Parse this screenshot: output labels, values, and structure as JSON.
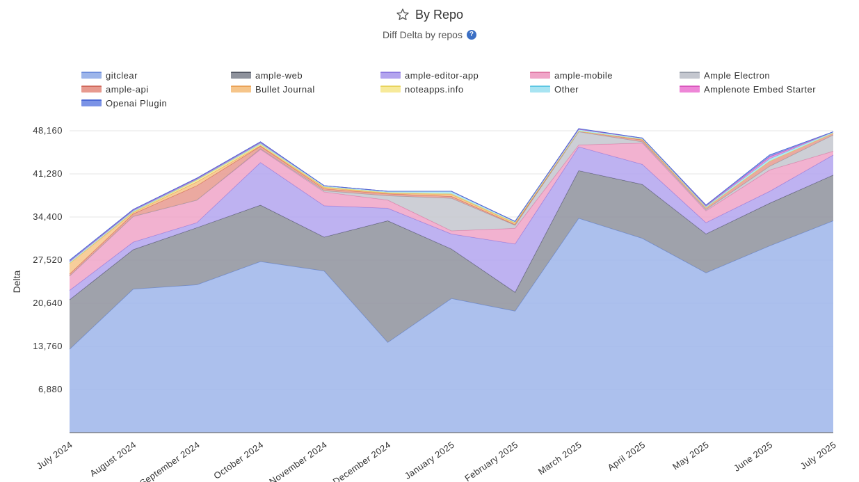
{
  "header": {
    "title": "By Repo",
    "subtitle": "Diff Delta by repos",
    "star_icon": "star-icon",
    "help_icon": "question-circle-icon",
    "help_glyph": "?"
  },
  "chart_data": {
    "type": "area",
    "stacked": true,
    "title": "By Repo",
    "subtitle": "Diff Delta by repos",
    "ylabel": "Delta",
    "xlabel": "",
    "ylim": [
      0,
      48160
    ],
    "yticks": [
      "6,880",
      "13,760",
      "20,640",
      "27,520",
      "34,400",
      "41,280",
      "48,160"
    ],
    "ytick_values": [
      6880,
      13760,
      20640,
      27520,
      34400,
      41280,
      48160
    ],
    "grid": true,
    "legend_position": "top",
    "categories": [
      "July 2024",
      "August 2024",
      "September 2024",
      "October 2024",
      "November 2024",
      "December 2024",
      "January 2025",
      "February 2025",
      "March 2025",
      "April 2025",
      "May 2025",
      "June 2025",
      "July 2025"
    ],
    "series": [
      {
        "name": "gitclear",
        "color": "#9db5ea",
        "line": "#6f8fdc",
        "values": [
          13300,
          22900,
          23600,
          27300,
          25800,
          14400,
          21400,
          19400,
          34200,
          31000,
          25500,
          29800,
          33800
        ]
      },
      {
        "name": "ample-web",
        "color": "#8e929c",
        "line": "#555a66",
        "values": [
          7900,
          6300,
          9100,
          9000,
          5400,
          19400,
          7900,
          3000,
          7600,
          8600,
          6200,
          6800,
          7300
        ]
      },
      {
        "name": "ample-editor-app",
        "color": "#b3a4ee",
        "line": "#8e7be0",
        "values": [
          1500,
          1200,
          800,
          6800,
          5000,
          2000,
          2400,
          7700,
          3800,
          3200,
          1800,
          1900,
          3200
        ]
      },
      {
        "name": "ample-mobile",
        "color": "#f0a5c8",
        "line": "#e07aa6",
        "values": [
          2300,
          4100,
          3600,
          2100,
          2200,
          1300,
          500,
          2500,
          300,
          3400,
          1900,
          3400,
          600
        ]
      },
      {
        "name": "Ample Electron",
        "color": "#c4c7cf",
        "line": "#9aa0ab",
        "values": [
          0,
          0,
          0,
          100,
          200,
          700,
          5200,
          500,
          2100,
          200,
          200,
          600,
          2600
        ]
      },
      {
        "name": "ample-api",
        "color": "#e79a8f",
        "line": "#d0695c",
        "values": [
          300,
          400,
          2300,
          400,
          300,
          300,
          300,
          100,
          100,
          300,
          300,
          800,
          300
        ]
      },
      {
        "name": "Bullet Journal",
        "color": "#f6c58a",
        "line": "#eaa257",
        "values": [
          1700,
          200,
          600,
          100,
          200,
          100,
          300,
          200,
          0,
          100,
          0,
          0,
          0
        ]
      },
      {
        "name": "noteapps.info",
        "color": "#f7ea9a",
        "line": "#e8d35c",
        "values": [
          0,
          100,
          300,
          200,
          100,
          100,
          100,
          100,
          0,
          0,
          0,
          0,
          0
        ]
      },
      {
        "name": "Other",
        "color": "#a8e4f2",
        "line": "#5cc6e3",
        "values": [
          300,
          200,
          100,
          200,
          200,
          200,
          400,
          200,
          300,
          200,
          200,
          400,
          200
        ]
      },
      {
        "name": "Amplenote Embed Starter",
        "color": "#ee86d7",
        "line": "#d956bd",
        "values": [
          0,
          100,
          100,
          100,
          0,
          0,
          0,
          0,
          0,
          0,
          100,
          300,
          0
        ]
      },
      {
        "name": "Openai Plugin",
        "color": "#7b93e6",
        "line": "#4d6ad6",
        "values": [
          200,
          100,
          100,
          100,
          0,
          0,
          0,
          0,
          100,
          0,
          100,
          300,
          0
        ]
      }
    ]
  }
}
